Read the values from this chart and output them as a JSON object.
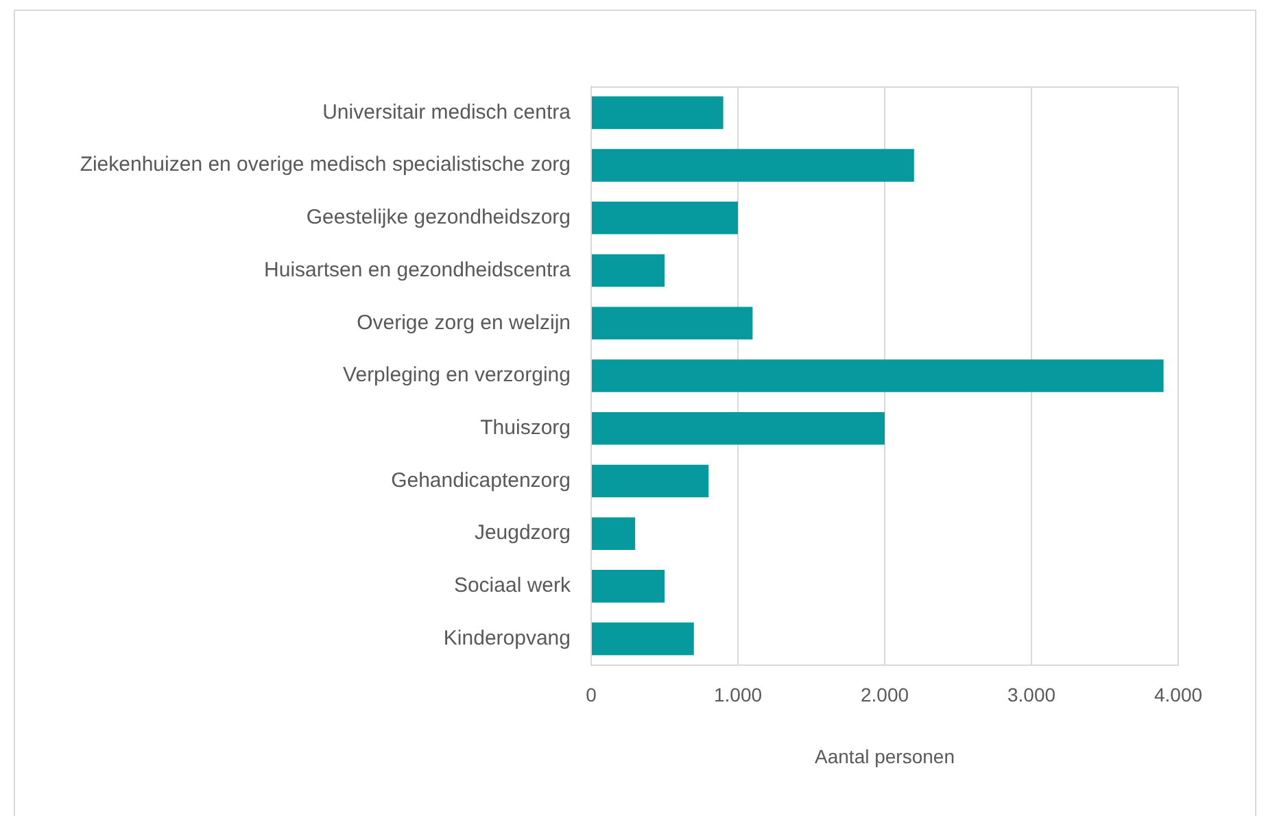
{
  "chart_data": {
    "type": "bar",
    "orientation": "horizontal",
    "categories": [
      "Universitair medisch centra",
      "Ziekenhuizen en overige medisch specialistische zorg",
      "Geestelijke gezondheidszorg",
      "Huisartsen en gezondheidscentra",
      "Overige zorg en welzijn",
      "Verpleging en verzorging",
      "Thuiszorg",
      "Gehandicaptenzorg",
      "Jeugdzorg",
      "Sociaal werk",
      "Kinderopvang"
    ],
    "values": [
      900,
      2200,
      1000,
      500,
      1100,
      3900,
      2000,
      800,
      300,
      500,
      700
    ],
    "color": "#069a9e",
    "xlabel": "Aantal personen",
    "xlim": [
      0,
      4000
    ],
    "xticks": [
      0,
      {
        "value": 1000,
        "label": "1.000"
      },
      {
        "value": 2000,
        "label": "2.000"
      },
      {
        "value": 3000,
        "label": "3.000"
      },
      {
        "value": 4000,
        "label": "4.000"
      }
    ],
    "grid": "x",
    "legend": false
  }
}
